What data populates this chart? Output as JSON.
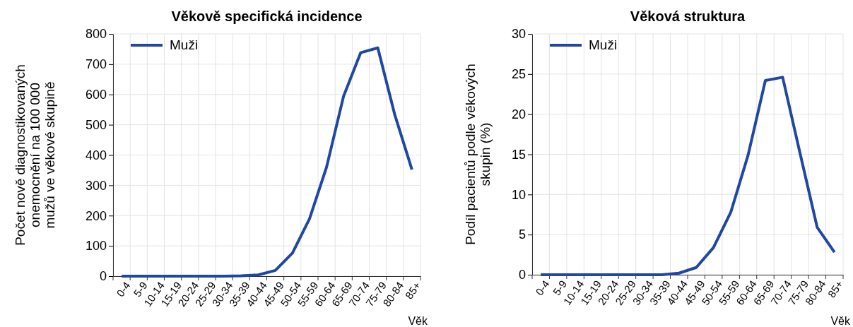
{
  "chart_data": [
    {
      "type": "line",
      "title": "Věkově specifická incidence",
      "xlabel": "Věk",
      "ylabel": "Počet nově diagnostikovaných\nonemocnění na 100 000\nmužů ve věkové skupině",
      "categories": [
        "0-4",
        "5-9",
        "10-14",
        "15-19",
        "20-24",
        "25-29",
        "30-34",
        "35-39",
        "40-44",
        "45-49",
        "50-54",
        "55-59",
        "60-64",
        "65-69",
        "70-74",
        "75-79",
        "80-84",
        "85+"
      ],
      "series": [
        {
          "name": "Muži",
          "color": "#1f47a3",
          "values": [
            0,
            0,
            0,
            0,
            0,
            0,
            0,
            1,
            4,
            19,
            76,
            189,
            360,
            595,
            738,
            754,
            532,
            352
          ]
        }
      ],
      "ylim": [
        0,
        800
      ],
      "yticks": [
        0,
        100,
        200,
        300,
        400,
        500,
        600,
        700,
        800
      ],
      "grid": true,
      "legend": "top left",
      "marker": "none",
      "line_style": "solid"
    },
    {
      "type": "line",
      "title": "Věková struktura",
      "xlabel": "Věk",
      "ylabel": "Podíl pacientů podle věkových\nskupin (%)",
      "categories": [
        "0-4",
        "5-9",
        "10-14",
        "15-19",
        "20-24",
        "25-29",
        "30-34",
        "35-39",
        "40-44",
        "45-49",
        "50-54",
        "55-59",
        "60-64",
        "65-69",
        "70-74",
        "75-79",
        "80-84",
        "85+"
      ],
      "series": [
        {
          "name": "Muži",
          "color": "#1f47a3",
          "values": [
            0,
            0,
            0,
            0,
            0,
            0,
            0,
            0,
            0.2,
            0.9,
            3.4,
            7.8,
            14.9,
            24.2,
            24.6,
            15.2,
            5.9,
            2.8
          ]
        }
      ],
      "ylim": [
        0,
        30
      ],
      "yticks": [
        0,
        5,
        10,
        15,
        20,
        25,
        30
      ],
      "grid": true,
      "legend": "top left",
      "marker": "none",
      "line_style": "solid"
    }
  ]
}
